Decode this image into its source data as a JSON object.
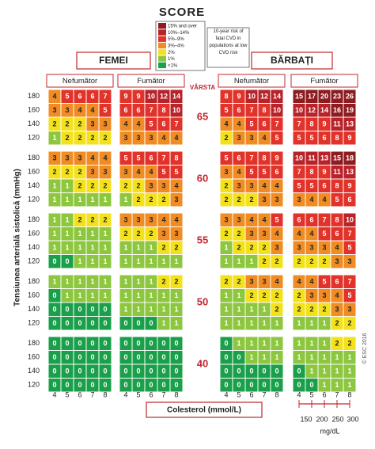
{
  "title": "SCORE",
  "legend": {
    "title": "10-year risk of fatal CVD in populations at low CVD risk",
    "items": [
      {
        "label": "15% and over",
        "color": "#8e1b1f",
        "text_color": "#ffffff"
      },
      {
        "label": "10%–14%",
        "color": "#b8232a",
        "text_color": "#ffffff"
      },
      {
        "label": "5%–9%",
        "color": "#e2332b",
        "text_color": "#ffffff"
      },
      {
        "label": "3%–4%",
        "color": "#f08c23",
        "text_color": "#222222"
      },
      {
        "label": "2%",
        "color": "#f3e21b",
        "text_color": "#222222"
      },
      {
        "label": "1%",
        "color": "#8dc63f",
        "text_color": "#ffffff"
      },
      {
        "label": "<1%",
        "color": "#1aa04a",
        "text_color": "#ffffff"
      }
    ]
  },
  "groups": [
    {
      "label": "FEMEI",
      "subgroups": [
        "Nefumător",
        "Fumător"
      ]
    },
    {
      "label": "BĂRBAȚI",
      "subgroups": [
        "Nefumător",
        "Fumător"
      ]
    }
  ],
  "age_label": "VÂRSTA",
  "y_label": "Tensiunea arterială sistolică (mmHg)",
  "x_label": "Colesterol (mmol/L)",
  "sbp": [
    180,
    160,
    140,
    120
  ],
  "chol": [
    4,
    5,
    6,
    7,
    8
  ],
  "mgdl": {
    "ticks": [
      150,
      200,
      250,
      300
    ],
    "label": "mg/dL"
  },
  "copyright": "© ESC 2016",
  "blocks": [
    {
      "age": 65,
      "panels": [
        [
          [
            4,
            5,
            6,
            6,
            7
          ],
          [
            3,
            3,
            4,
            4,
            5
          ],
          [
            2,
            2,
            2,
            3,
            3
          ],
          [
            1,
            2,
            2,
            2,
            2
          ]
        ],
        [
          [
            9,
            9,
            10,
            12,
            14
          ],
          [
            6,
            6,
            7,
            8,
            10
          ],
          [
            4,
            4,
            5,
            6,
            7
          ],
          [
            3,
            3,
            3,
            4,
            4
          ]
        ],
        [
          [
            8,
            9,
            10,
            12,
            14
          ],
          [
            5,
            6,
            7,
            8,
            10
          ],
          [
            4,
            4,
            5,
            6,
            7
          ],
          [
            2,
            3,
            3,
            4,
            5
          ]
        ],
        [
          [
            15,
            17,
            20,
            23,
            26
          ],
          [
            10,
            12,
            14,
            16,
            19
          ],
          [
            7,
            8,
            9,
            11,
            13
          ],
          [
            5,
            5,
            6,
            8,
            9
          ]
        ]
      ]
    },
    {
      "age": 60,
      "panels": [
        [
          [
            3,
            3,
            3,
            4,
            4
          ],
          [
            2,
            2,
            2,
            3,
            3
          ],
          [
            1,
            1,
            2,
            2,
            2
          ],
          [
            1,
            1,
            1,
            1,
            1
          ]
        ],
        [
          [
            5,
            5,
            6,
            7,
            8
          ],
          [
            3,
            4,
            4,
            5,
            5
          ],
          [
            2,
            2,
            3,
            3,
            4
          ],
          [
            1,
            2,
            2,
            2,
            3
          ]
        ],
        [
          [
            5,
            6,
            7,
            8,
            9
          ],
          [
            3,
            4,
            5,
            5,
            6
          ],
          [
            2,
            3,
            3,
            4,
            4
          ],
          [
            2,
            2,
            2,
            3,
            3
          ]
        ],
        [
          [
            10,
            11,
            13,
            15,
            18
          ],
          [
            7,
            8,
            9,
            11,
            13
          ],
          [
            5,
            5,
            6,
            8,
            9
          ],
          [
            3,
            4,
            4,
            5,
            6
          ]
        ]
      ]
    },
    {
      "age": 55,
      "panels": [
        [
          [
            1,
            1,
            2,
            2,
            2
          ],
          [
            1,
            1,
            1,
            1,
            1
          ],
          [
            1,
            1,
            1,
            1,
            1
          ],
          [
            0,
            0,
            1,
            1,
            1
          ]
        ],
        [
          [
            3,
            3,
            3,
            4,
            4
          ],
          [
            2,
            2,
            2,
            3,
            3
          ],
          [
            1,
            1,
            1,
            2,
            2
          ],
          [
            1,
            1,
            1,
            1,
            1
          ]
        ],
        [
          [
            3,
            3,
            4,
            4,
            5
          ],
          [
            2,
            2,
            3,
            3,
            4
          ],
          [
            1,
            2,
            2,
            2,
            3
          ],
          [
            1,
            1,
            1,
            2,
            2
          ]
        ],
        [
          [
            6,
            6,
            7,
            8,
            10
          ],
          [
            4,
            4,
            5,
            6,
            7
          ],
          [
            3,
            3,
            3,
            4,
            5
          ],
          [
            2,
            2,
            2,
            3,
            3
          ]
        ]
      ]
    },
    {
      "age": 50,
      "panels": [
        [
          [
            1,
            1,
            1,
            1,
            1
          ],
          [
            0,
            1,
            1,
            1,
            1
          ],
          [
            0,
            0,
            0,
            0,
            0
          ],
          [
            0,
            0,
            0,
            0,
            0
          ]
        ],
        [
          [
            1,
            1,
            1,
            2,
            2
          ],
          [
            1,
            1,
            1,
            1,
            1
          ],
          [
            1,
            1,
            1,
            1,
            1
          ],
          [
            0,
            0,
            0,
            1,
            1
          ]
        ],
        [
          [
            2,
            2,
            3,
            3,
            4
          ],
          [
            1,
            1,
            2,
            2,
            2
          ],
          [
            1,
            1,
            1,
            1,
            2
          ],
          [
            1,
            1,
            1,
            1,
            1
          ]
        ],
        [
          [
            4,
            4,
            5,
            6,
            7
          ],
          [
            2,
            3,
            3,
            4,
            5
          ],
          [
            2,
            2,
            2,
            3,
            3
          ],
          [
            1,
            1,
            1,
            2,
            2
          ]
        ]
      ]
    },
    {
      "age": 40,
      "panels": [
        [
          [
            0,
            0,
            0,
            0,
            0
          ],
          [
            0,
            0,
            0,
            0,
            0
          ],
          [
            0,
            0,
            0,
            0,
            0
          ],
          [
            0,
            0,
            0,
            0,
            0
          ]
        ],
        [
          [
            0,
            0,
            0,
            0,
            0
          ],
          [
            0,
            0,
            0,
            0,
            0
          ],
          [
            0,
            0,
            0,
            0,
            0
          ],
          [
            0,
            0,
            0,
            0,
            0
          ]
        ],
        [
          [
            0,
            1,
            1,
            1,
            1
          ],
          [
            0,
            0,
            1,
            1,
            1
          ],
          [
            0,
            0,
            0,
            0,
            0
          ],
          [
            0,
            0,
            0,
            0,
            0
          ]
        ],
        [
          [
            1,
            1,
            1,
            2,
            2
          ],
          [
            1,
            1,
            1,
            1,
            1
          ],
          [
            0,
            1,
            1,
            1,
            1
          ],
          [
            0,
            0,
            1,
            1,
            1
          ]
        ]
      ]
    }
  ]
}
